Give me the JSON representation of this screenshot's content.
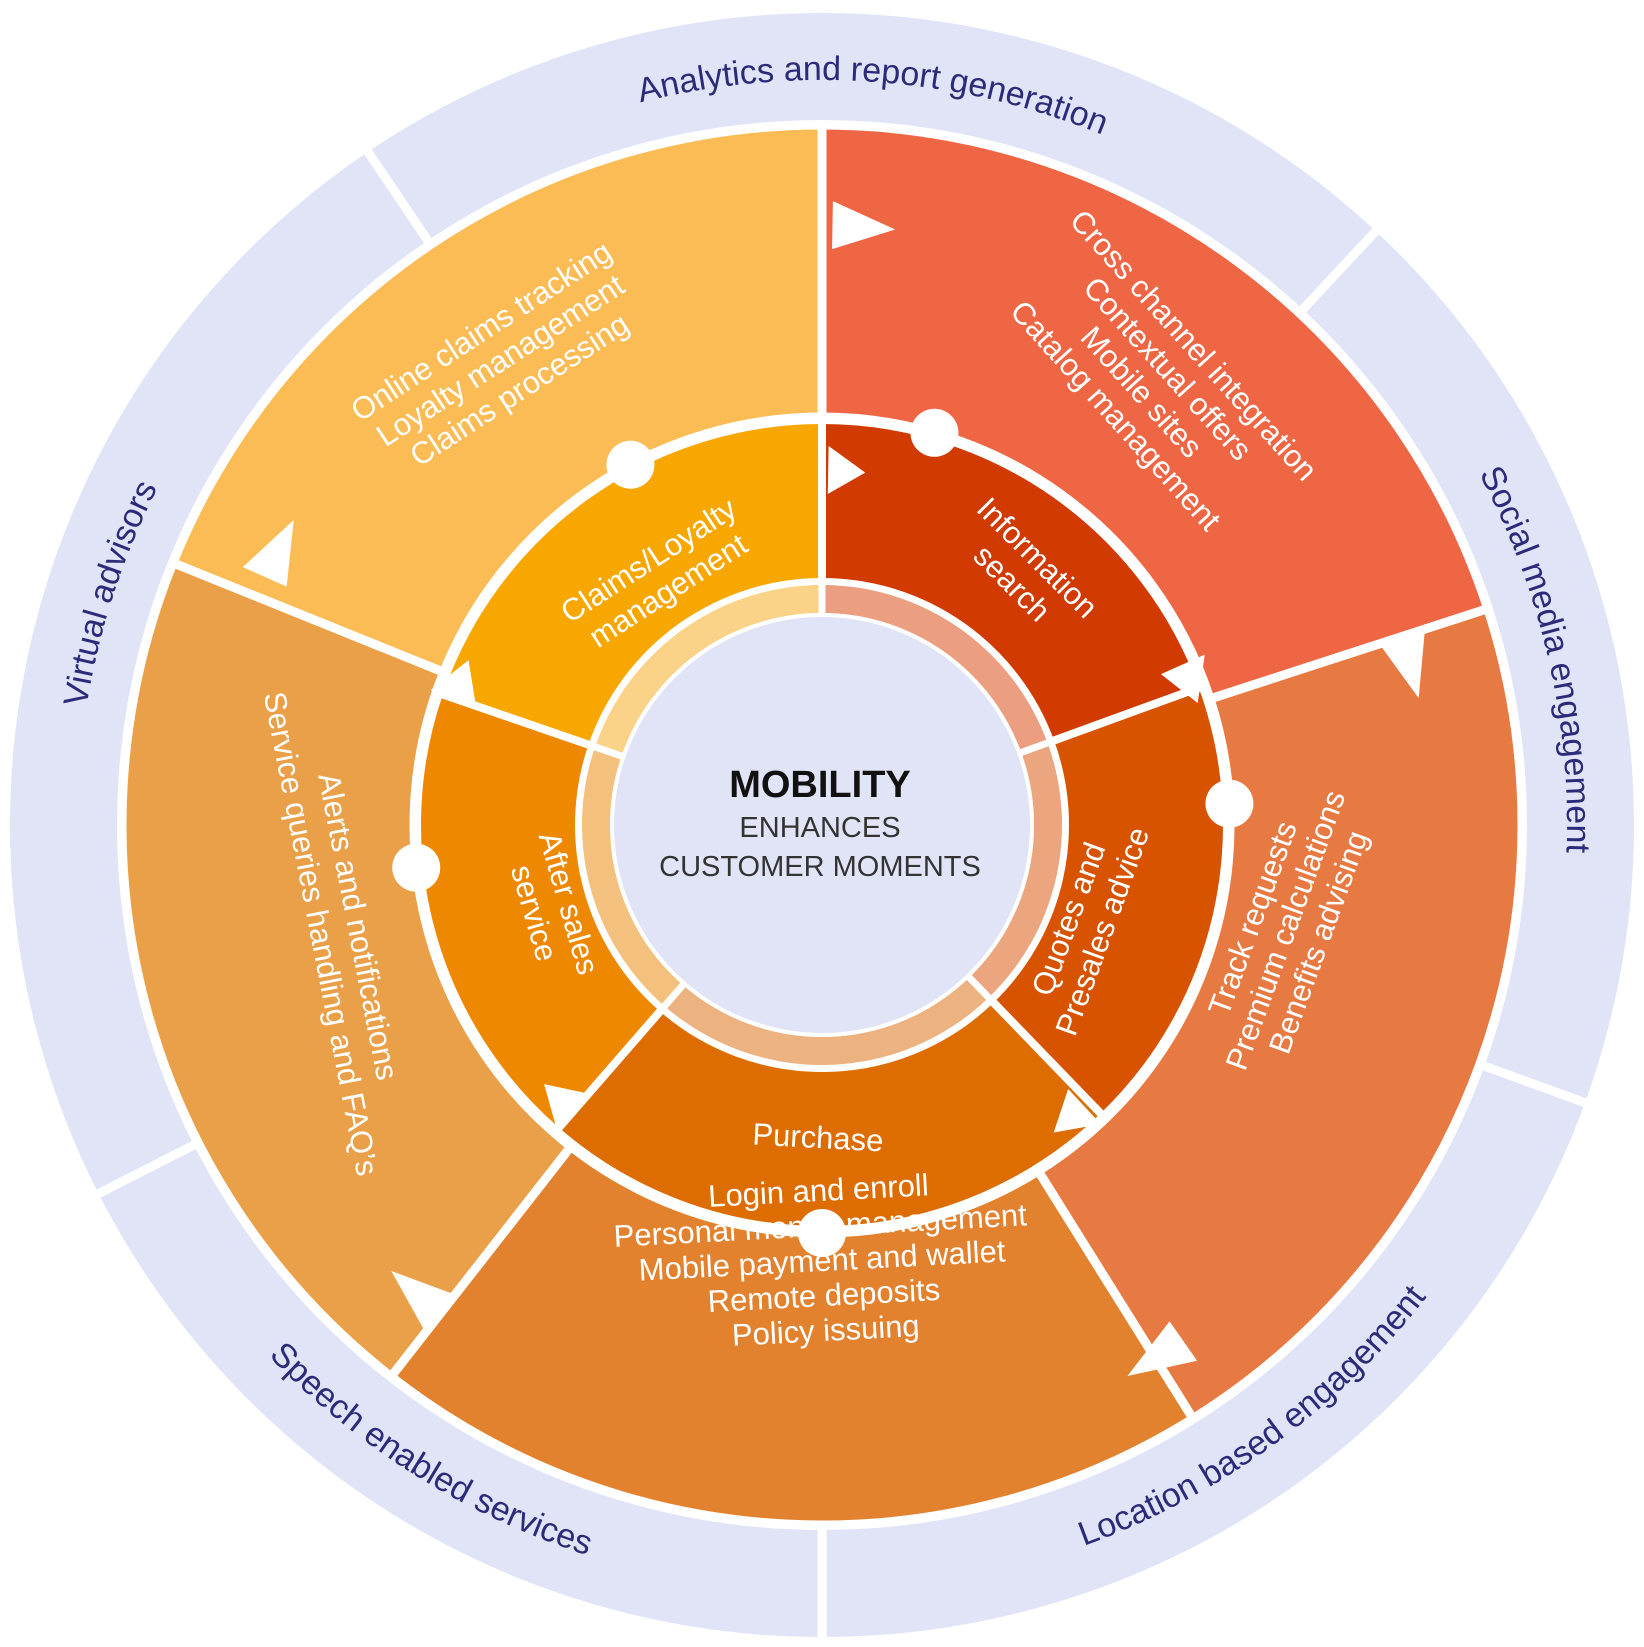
{
  "center": {
    "title": "MOBILITY",
    "line1": "ENHANCES",
    "line2": "CUSTOMER MOMENTS"
  },
  "outer_ring": [
    "Analytics and report generation",
    "Social media engagement",
    "Location based engagement",
    "Speech enabled services",
    "Virtual advisors"
  ],
  "stages": [
    {
      "name": "Information search",
      "inner_lines": [
        "Information",
        "search"
      ],
      "items": [
        "Cross channel integration",
        "Contextual offers",
        "Mobile sites",
        "Catalog management"
      ]
    },
    {
      "name": "Quotes and Presales advice",
      "inner_lines": [
        "Quotes and",
        "Presales advice"
      ],
      "items": [
        "Track requests",
        "Premium calculations",
        "Benefits advising"
      ]
    },
    {
      "name": "Purchase",
      "inner_lines": [
        "Purchase"
      ],
      "items": [
        "Login and enroll",
        "Personal money management",
        "Mobile payment and wallet",
        "Remote deposits",
        "Policy issuing"
      ]
    },
    {
      "name": "After sales service",
      "inner_lines": [
        "After sales",
        "service"
      ],
      "items": [
        "Alerts and notifications",
        "Service queries handling and FAQ’s"
      ]
    },
    {
      "name": "Claims/Loyalty management",
      "inner_lines": [
        "Claims/Loyalty",
        "management"
      ],
      "items": [
        "Online claims tracking",
        "Loyalty management",
        "Claims processing"
      ]
    }
  ],
  "colors": {
    "outer_ring": "#e1e4f7",
    "outer_text": "#2b2b7a",
    "center_fill": "#e1e4f7",
    "mid": [
      "#ee6644",
      "#e77a43",
      "#e2822f",
      "#eaa048",
      "#fbbc55"
    ],
    "inner": [
      "#d13a00",
      "#d85300",
      "#dd6d00",
      "#ee8800",
      "#f8a600"
    ],
    "center_ring": [
      "#eb9e80",
      "#eba57f",
      "#ecb27f",
      "#f4c07d",
      "#fad288"
    ]
  }
}
